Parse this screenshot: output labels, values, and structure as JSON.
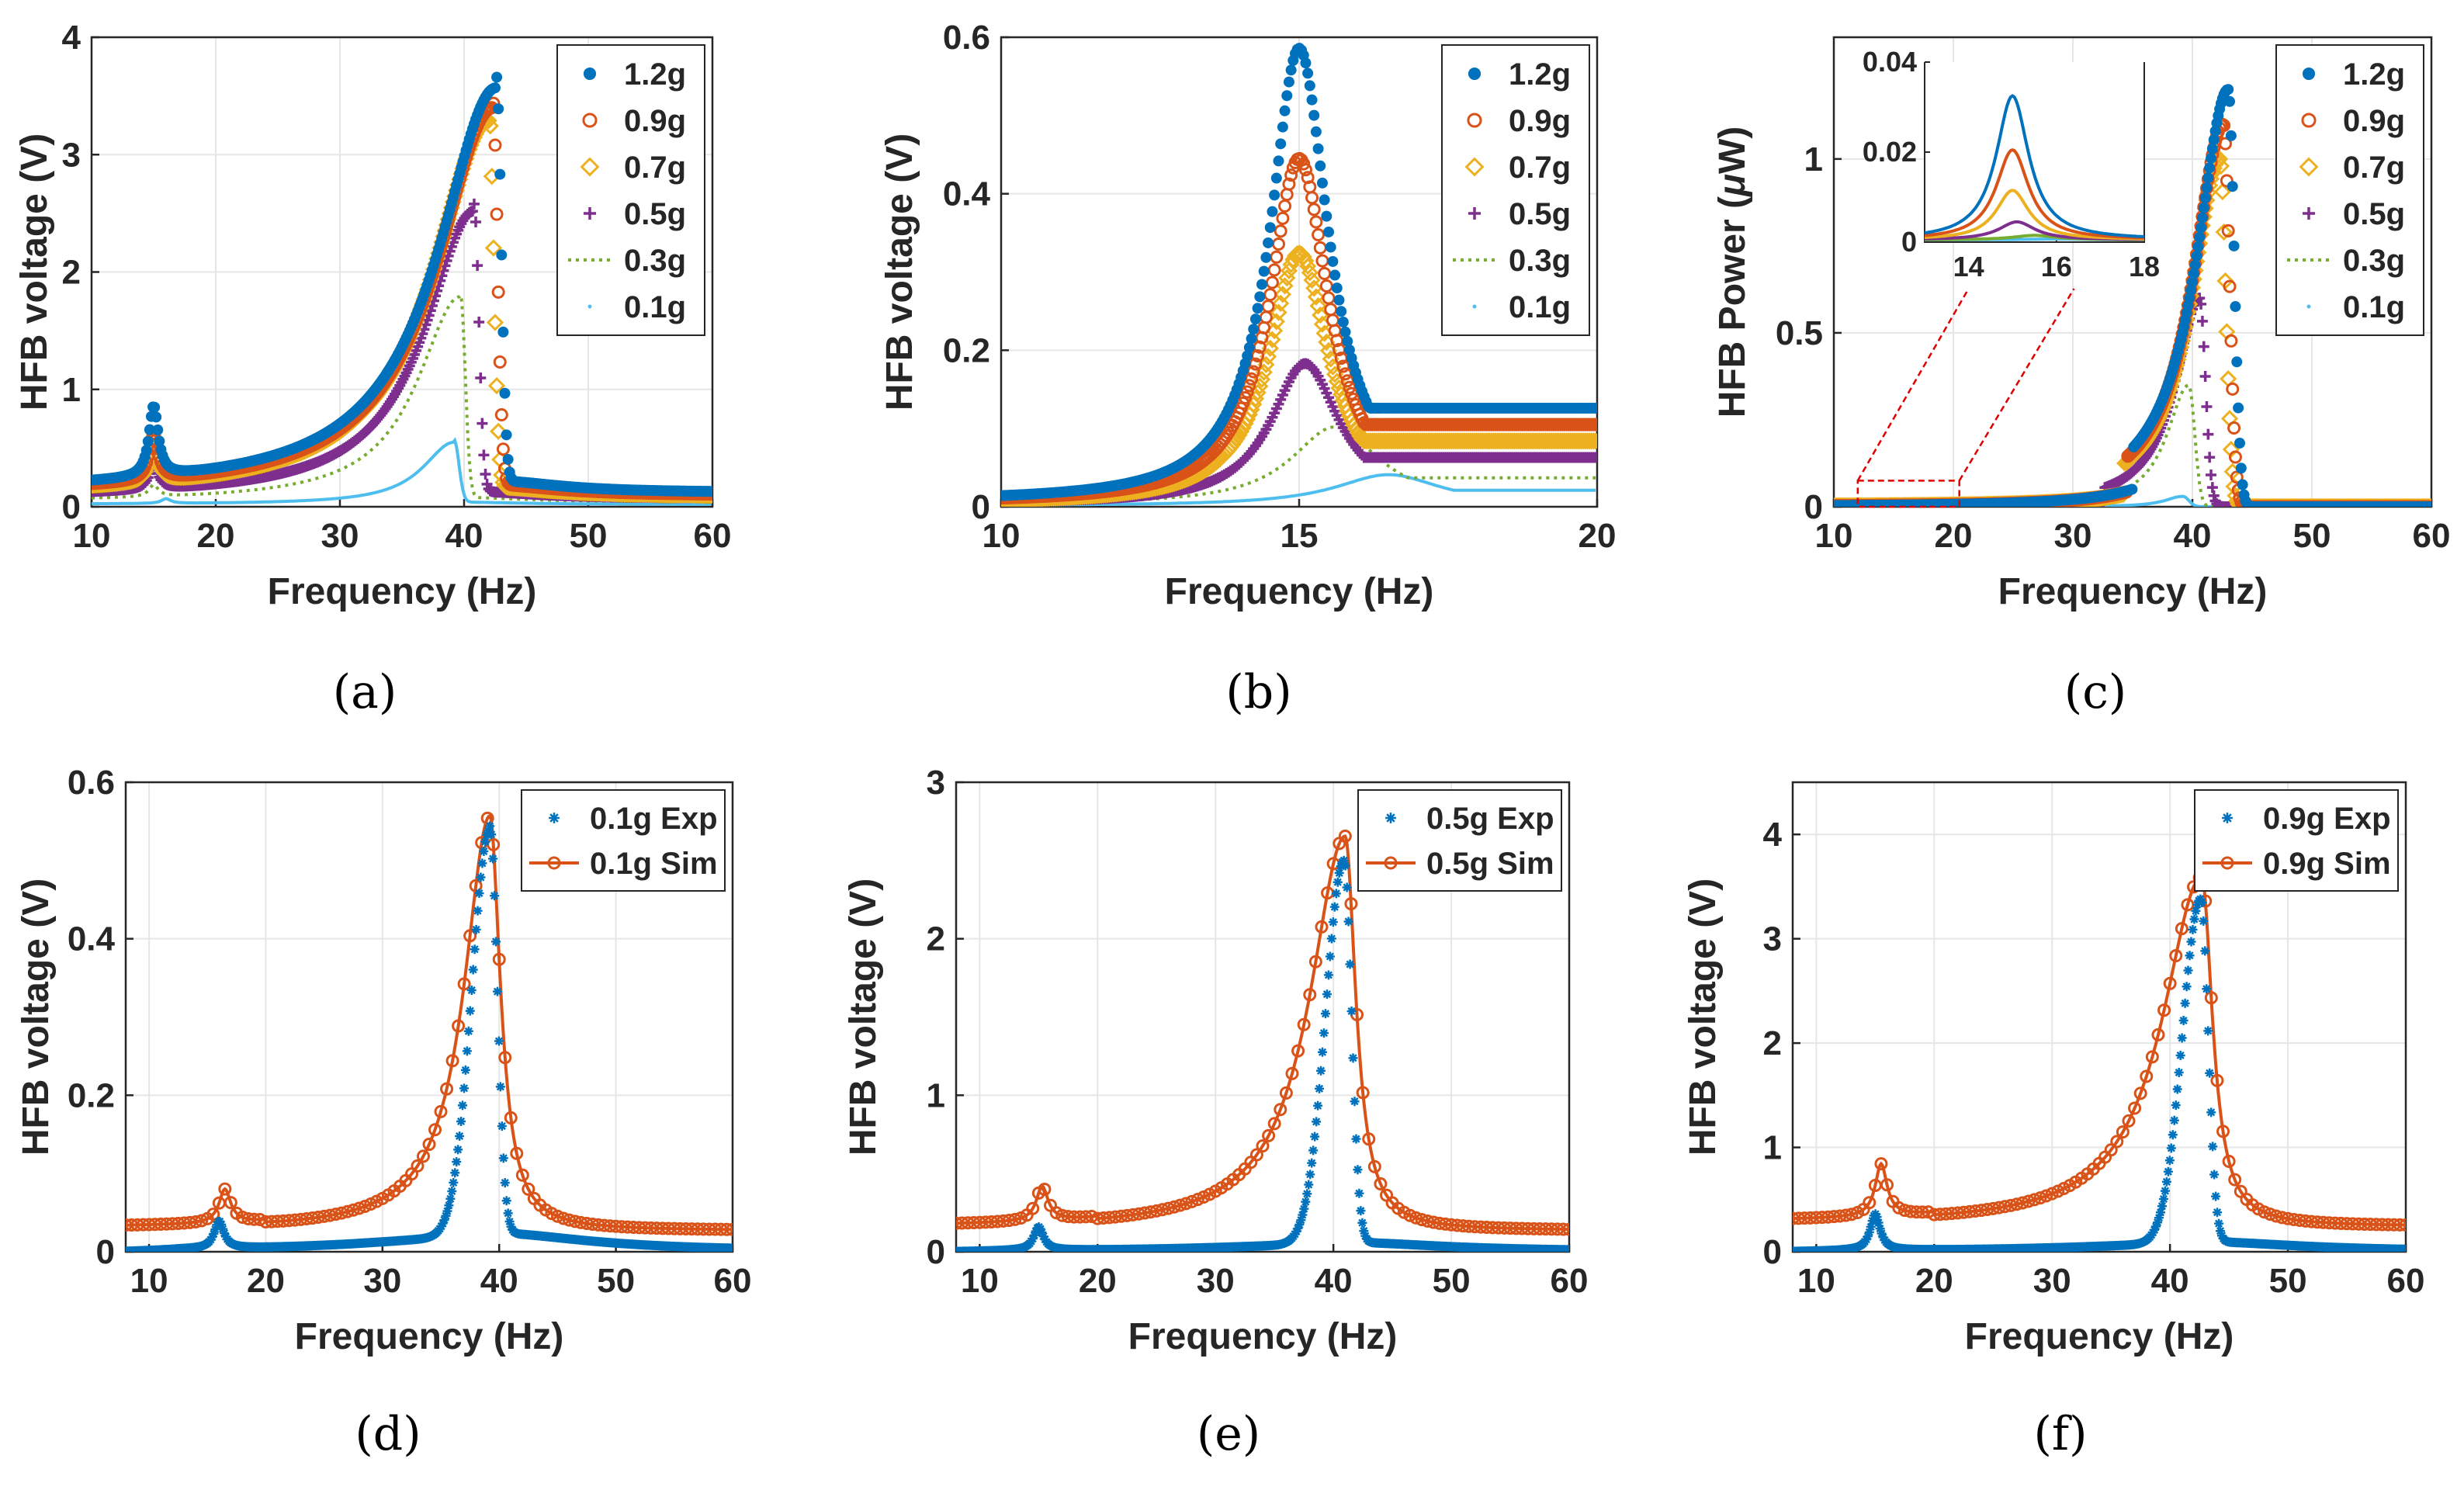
{
  "colors": {
    "c1_2g": "#0072BD",
    "c0_9g": "#D95319",
    "c0_7g": "#EDB120",
    "c0_5g": "#7E2F8E",
    "c0_3g": "#77AC30",
    "c0_1g": "#4DBEEE",
    "exp": "#0072BD",
    "sim": "#D95319",
    "zoom_box": "#e00000"
  },
  "chart_data": [
    {
      "id": "a",
      "panel_label": "(a)",
      "type": "scatter",
      "xlabel": "Frequency (Hz)",
      "ylabel": "HFB voltage (V)",
      "xlim": [
        10,
        60
      ],
      "ylim": [
        0,
        4
      ],
      "xticks": [
        10,
        20,
        30,
        40,
        50,
        60
      ],
      "yticks": [
        0,
        1,
        2,
        3,
        4
      ],
      "ytick_labels": [
        "0",
        "1",
        "2",
        "3",
        "4"
      ],
      "grid": true,
      "legend_position": "top-right",
      "series": [
        {
          "name": "1.2g",
          "marker": "dot",
          "peak_x": 42.6,
          "peak_y": 3.45,
          "sub_x": 15.0,
          "sub_y": 0.6,
          "base": 0.12,
          "tail": 0.1
        },
        {
          "name": "0.9g",
          "marker": "circle",
          "peak_x": 42.3,
          "peak_y": 3.3,
          "sub_x": 15.0,
          "sub_y": 0.4,
          "base": 0.1,
          "tail": 0.09
        },
        {
          "name": "0.7g",
          "marker": "diamond",
          "peak_x": 42.0,
          "peak_y": 3.2,
          "sub_x": 15.0,
          "sub_y": 0.3,
          "base": 0.09,
          "tail": 0.08
        },
        {
          "name": "0.5g",
          "marker": "plus",
          "peak_x": 40.8,
          "peak_y": 2.45,
          "sub_x": 15.0,
          "sub_y": 0.2,
          "base": 0.07,
          "tail": 0.06
        },
        {
          "name": "0.3g",
          "marker": "dotted-line",
          "peak_x": 39.7,
          "peak_y": 1.75,
          "sub_x": 15.0,
          "sub_y": 0.1,
          "base": 0.04,
          "tail": 0.04
        },
        {
          "name": "0.1g",
          "marker": "line",
          "peak_x": 39.2,
          "peak_y": 0.53,
          "sub_x": 16.0,
          "sub_y": 0.04,
          "base": 0.02,
          "tail": 0.02
        }
      ]
    },
    {
      "id": "b",
      "panel_label": "(b)",
      "type": "scatter",
      "xlabel": "Frequency (Hz)",
      "ylabel": "HFB voltage (V)",
      "xlim": [
        10,
        20
      ],
      "ylim": [
        0,
        0.6
      ],
      "xticks": [
        10,
        15,
        20
      ],
      "yticks": [
        0,
        0.2,
        0.4,
        0.6
      ],
      "ytick_labels": [
        "0",
        "0.2",
        "0.4",
        "0.6"
      ],
      "grid": true,
      "legend_position": "top-right",
      "series": [
        {
          "name": "1.2g",
          "marker": "dot",
          "peak_x": 15.0,
          "peak_y": 0.58,
          "width": 0.6,
          "tail_level": 0.12,
          "base": 0.006
        },
        {
          "name": "0.9g",
          "marker": "circle",
          "peak_x": 15.0,
          "peak_y": 0.44,
          "width": 0.6,
          "tail_level": 0.1,
          "base": 0.005
        },
        {
          "name": "0.7g",
          "marker": "diamond",
          "peak_x": 15.0,
          "peak_y": 0.32,
          "width": 0.62,
          "tail_level": 0.08,
          "base": 0.004
        },
        {
          "name": "0.5g",
          "marker": "plus",
          "peak_x": 15.1,
          "peak_y": 0.18,
          "width": 0.7,
          "tail_level": 0.06,
          "base": 0.003
        },
        {
          "name": "0.3g",
          "marker": "dotted-line",
          "peak_x": 15.6,
          "peak_y": 0.1,
          "width": 0.9,
          "tail_level": 0.035,
          "base": 0.002
        },
        {
          "name": "0.1g",
          "marker": "line",
          "peak_x": 16.5,
          "peak_y": 0.04,
          "width": 1.1,
          "tail_level": 0.02,
          "base": 0.001
        }
      ]
    },
    {
      "id": "c",
      "panel_label": "(c)",
      "type": "scatter",
      "xlabel": "Frequency (Hz)",
      "ylabel_main": "HFB Power (",
      "ylabel_mu": "μ",
      "ylabel_end": "W)",
      "xlim": [
        10,
        60
      ],
      "ylim": [
        0,
        1.35
      ],
      "xticks": [
        10,
        20,
        30,
        40,
        50,
        60
      ],
      "yticks": [
        0,
        0.5,
        1
      ],
      "ytick_labels": [
        "0",
        "0.5",
        "1"
      ],
      "grid": true,
      "legend_position": "top-right",
      "zoom_region": {
        "x": [
          12,
          20.5
        ],
        "y": [
          0,
          0.075
        ]
      },
      "series": [
        {
          "name": "1.2g",
          "marker": "dot",
          "peak_x": 43.0,
          "peak_y": 1.2
        },
        {
          "name": "0.9g",
          "marker": "circle",
          "peak_x": 42.6,
          "peak_y": 1.1
        },
        {
          "name": "0.7g",
          "marker": "diamond",
          "peak_x": 42.3,
          "peak_y": 1.0
        },
        {
          "name": "0.5g",
          "marker": "plus",
          "peak_x": 40.6,
          "peak_y": 0.6
        },
        {
          "name": "0.3g",
          "marker": "dotted-line",
          "peak_x": 39.7,
          "peak_y": 0.35
        },
        {
          "name": "0.1g",
          "marker": "line",
          "peak_x": 39.2,
          "peak_y": 0.03
        }
      ],
      "inset": {
        "xlim": [
          13,
          18
        ],
        "ylim": [
          0,
          0.04
        ],
        "xticks": [
          14,
          16,
          18
        ],
        "yticks": [
          0,
          0.02,
          0.04
        ],
        "ytick_labels": [
          "0",
          "0.02",
          "0.04"
        ],
        "series": [
          {
            "name": "1.2g",
            "peak_x": 15.0,
            "peak_y": 0.032,
            "width": 0.45
          },
          {
            "name": "0.9g",
            "peak_x": 15.0,
            "peak_y": 0.02,
            "width": 0.45
          },
          {
            "name": "0.7g",
            "peak_x": 15.0,
            "peak_y": 0.011,
            "width": 0.45
          },
          {
            "name": "0.5g",
            "peak_x": 15.1,
            "peak_y": 0.004,
            "width": 0.5
          },
          {
            "name": "0.3g",
            "peak_x": 15.5,
            "peak_y": 0.001,
            "width": 0.6
          },
          {
            "name": "0.1g",
            "peak_x": 16.0,
            "peak_y": 0.0002,
            "width": 0.8
          }
        ]
      }
    },
    {
      "id": "d",
      "panel_label": "(d)",
      "type": "scatter",
      "xlabel": "Frequency (Hz)",
      "ylabel": "HFB voltage (V)",
      "xlim": [
        8,
        60
      ],
      "ylim": [
        0,
        0.6
      ],
      "xticks": [
        10,
        20,
        30,
        40,
        50,
        60
      ],
      "yticks": [
        0,
        0.2,
        0.4,
        0.6
      ],
      "ytick_labels": [
        "0",
        "0.2",
        "0.4",
        "0.6"
      ],
      "grid": true,
      "legend_position": "top-right",
      "series": [
        {
          "name": "0.1g Exp",
          "marker": "asterisk",
          "peak_x": 39.2,
          "peak_y": 0.52,
          "sub_x": 16.0,
          "sub_y": 0.035,
          "base": 0.0,
          "floor": 0.02
        },
        {
          "name": "0.1g Sim",
          "marker": "circle-line",
          "peak_x": 39.2,
          "peak_y": 0.53,
          "sub_x": 16.5,
          "sub_y": 0.043,
          "base": 0.03,
          "floor": 0.03
        }
      ]
    },
    {
      "id": "e",
      "panel_label": "(e)",
      "type": "scatter",
      "xlabel": "Frequency (Hz)",
      "ylabel": "HFB voltage (V)",
      "xlim": [
        8,
        60
      ],
      "ylim": [
        0,
        3
      ],
      "xticks": [
        10,
        20,
        30,
        40,
        50,
        60
      ],
      "yticks": [
        0,
        1,
        2,
        3
      ],
      "ytick_labels": [
        "0",
        "1",
        "2",
        "3"
      ],
      "grid": true,
      "legend_position": "top-right",
      "series": [
        {
          "name": "0.5g Exp",
          "marker": "asterisk",
          "peak_x": 40.9,
          "peak_y": 2.45,
          "sub_x": 15.0,
          "sub_y": 0.15,
          "base": 0.0,
          "floor": 0.05
        },
        {
          "name": "0.5g Sim",
          "marker": "circle-line",
          "peak_x": 41.0,
          "peak_y": 2.52,
          "sub_x": 15.3,
          "sub_y": 0.22,
          "base": 0.15,
          "floor": 0.1
        }
      ]
    },
    {
      "id": "f",
      "panel_label": "(f)",
      "type": "scatter",
      "xlabel": "Frequency (Hz)",
      "ylabel": "HFB voltage (V)",
      "xlim": [
        8,
        60
      ],
      "ylim": [
        0,
        4.5
      ],
      "xticks": [
        10,
        20,
        30,
        40,
        50,
        60
      ],
      "yticks": [
        0,
        1,
        2,
        3,
        4
      ],
      "ytick_labels": [
        "0",
        "1",
        "2",
        "3",
        "4"
      ],
      "grid": true,
      "legend_position": "top-right",
      "series": [
        {
          "name": "0.9g Exp",
          "marker": "asterisk",
          "peak_x": 42.6,
          "peak_y": 3.3,
          "sub_x": 15.0,
          "sub_y": 0.35,
          "base": 0.0,
          "floor": 0.08
        },
        {
          "name": "0.9g Sim",
          "marker": "circle-line",
          "peak_x": 42.7,
          "peak_y": 3.35,
          "sub_x": 15.5,
          "sub_y": 0.5,
          "base": 0.27,
          "floor": 0.2
        }
      ]
    }
  ]
}
